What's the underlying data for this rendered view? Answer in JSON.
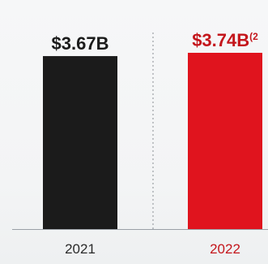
{
  "chart_data": {
    "type": "bar",
    "categories": [
      "2021",
      "2022"
    ],
    "values": [
      3.67,
      3.74
    ],
    "data_labels": [
      "$3.67B",
      "$3.74B"
    ],
    "data_label_footnote": "(2",
    "title": "",
    "xlabel": "",
    "ylabel": "",
    "ylim": [
      0,
      3.74
    ],
    "grid": false,
    "legend": "none",
    "colors": {
      "bar_2021": "#1b1b1b",
      "bar_2022": "#e0141e",
      "label_2021": "#1b1b1b",
      "label_2022": "#c4161c",
      "axis": "#9aa0a6",
      "separator": "#8a8f94"
    }
  }
}
